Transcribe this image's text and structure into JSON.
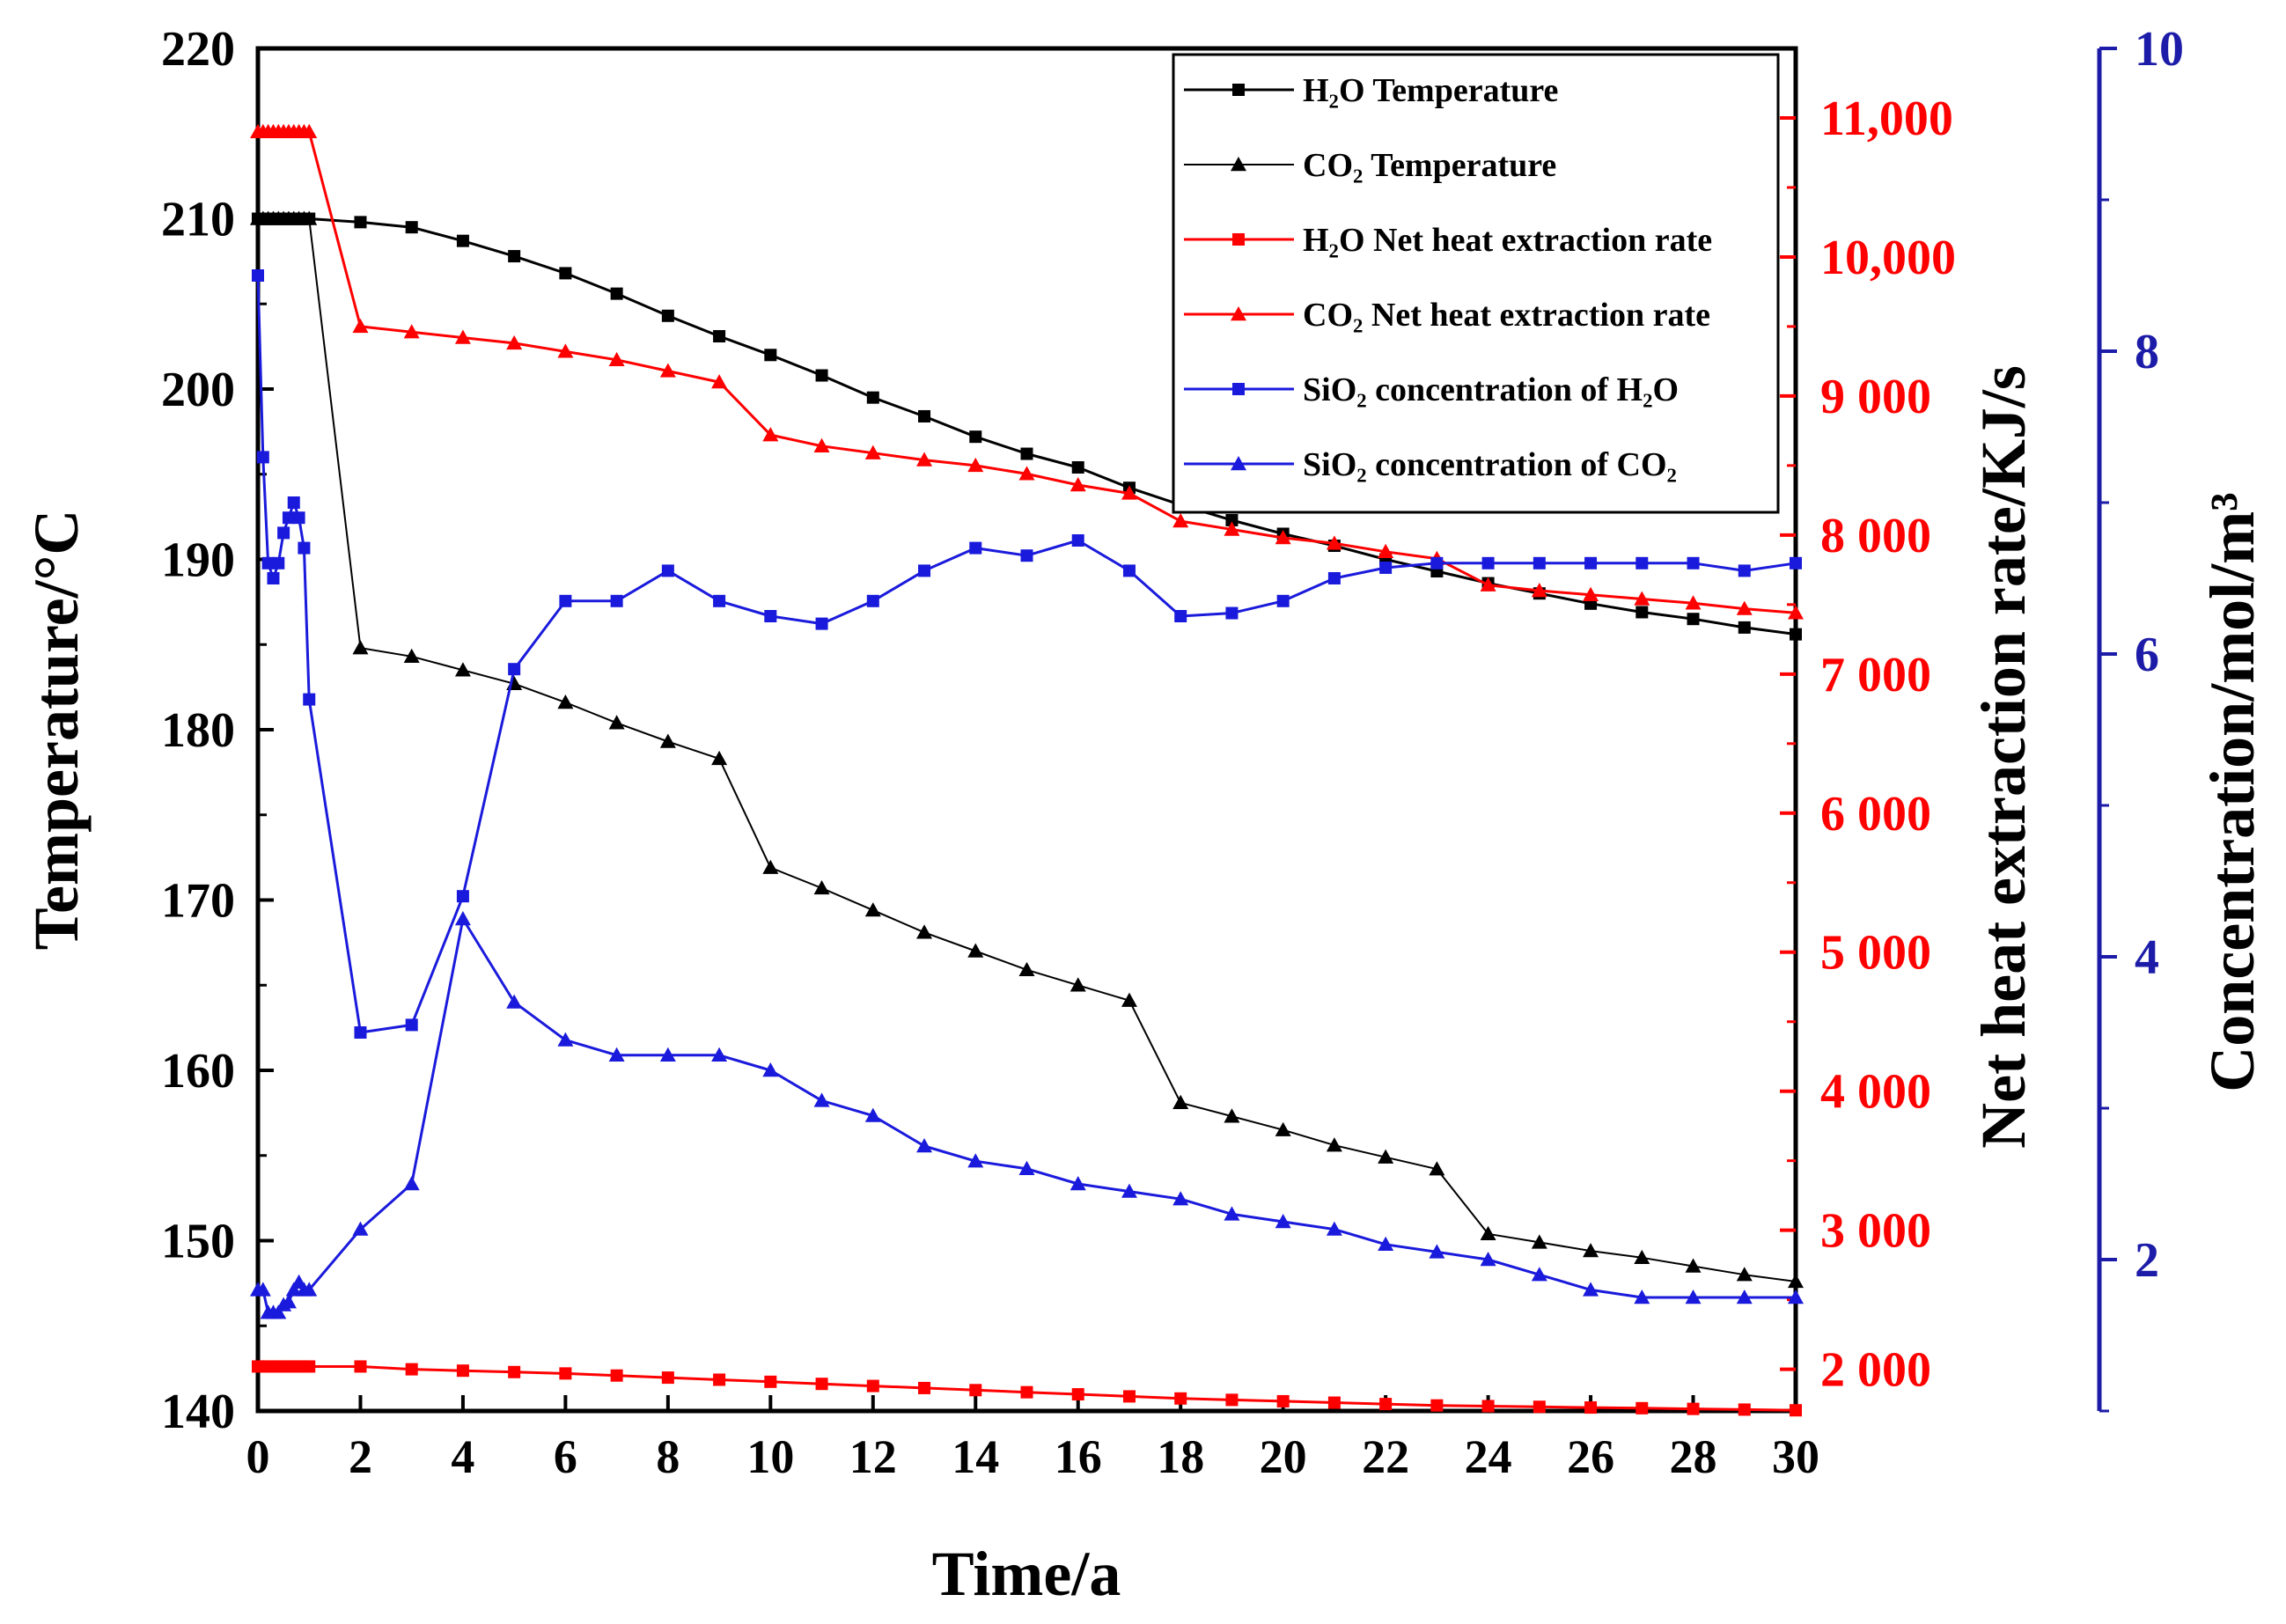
{
  "chart_data": {
    "type": "line",
    "xlabel": "Time/a",
    "ylabel_left": "Temperature/°C",
    "ylabel_right1": "Net heat extraction rate/KJ/s",
    "ylabel_right2": "Concentration/mol/m³",
    "xlim": [
      0,
      30
    ],
    "ylim_left": [
      140,
      220
    ],
    "ylim_right1": [
      1700,
      11500
    ],
    "ylim_right2": [
      1,
      10
    ],
    "x_ticks": [
      "0",
      "2",
      "4",
      "6",
      "8",
      "10",
      "12",
      "14",
      "16",
      "18",
      "20",
      "22",
      "24",
      "26",
      "28",
      "30"
    ],
    "left_ticks": [
      "140",
      "150",
      "160",
      "170",
      "180",
      "190",
      "200",
      "210",
      "220"
    ],
    "right1_ticks": [
      "2 000",
      "3 000",
      "4 000",
      "5 000",
      "6 000",
      "7 000",
      "8 000",
      "9 000",
      "10,000",
      "11,000"
    ],
    "right2_ticks": [
      "2",
      "4",
      "6",
      "8",
      "10"
    ],
    "colors": {
      "black": "#000000",
      "red": "#ff0000",
      "blue": "#1a1adc",
      "axis_blue": "#1c1ca8"
    },
    "legend": [
      {
        "label": "H₂O Temperature",
        "color": "#000000",
        "marker": "square",
        "line_width": 3
      },
      {
        "label": "CO₂ Temperature",
        "color": "#000000",
        "marker": "triangle",
        "line_width": 2
      },
      {
        "label": "H₂O Net heat extraction rate",
        "color": "#ff0000",
        "marker": "square",
        "line_width": 3
      },
      {
        "label": "CO₂ Net heat extraction rate",
        "color": "#ff0000",
        "marker": "triangle",
        "line_width": 3
      },
      {
        "label": "SiO₂ concentration of H₂O",
        "color": "#1a1adc",
        "marker": "square",
        "line_width": 3
      },
      {
        "label": "SiO₂ concentration of CO₂",
        "color": "#1a1adc",
        "marker": "triangle",
        "line_width": 3
      }
    ],
    "series": [
      {
        "name": "H₂O Temperature",
        "axis": "left",
        "color": "#000000",
        "marker": "square",
        "line_width": 3,
        "x": [
          0,
          0.1,
          0.2,
          0.3,
          0.4,
          0.5,
          0.6,
          0.7,
          0.8,
          0.9,
          1,
          2,
          3,
          4,
          5,
          6,
          7,
          8,
          9,
          10,
          11,
          12,
          13,
          14,
          15,
          16,
          17,
          18,
          19,
          20,
          21,
          22,
          23,
          24,
          25,
          26,
          27,
          28,
          29,
          30
        ],
        "y": [
          210,
          210,
          210,
          210,
          210,
          210,
          210,
          210,
          210,
          210,
          210,
          209.8,
          209.5,
          208.7,
          207.8,
          206.8,
          205.6,
          204.3,
          203.1,
          202.0,
          200.8,
          199.5,
          198.4,
          197.2,
          196.2,
          195.4,
          194.2,
          193.2,
          192.3,
          191.5,
          190.8,
          190.0,
          189.3,
          188.6,
          188.0,
          187.4,
          186.9,
          186.5,
          186.0,
          185.6
        ]
      },
      {
        "name": "CO₂ Temperature",
        "axis": "left",
        "color": "#000000",
        "marker": "triangle",
        "line_width": 2,
        "x": [
          0,
          0.1,
          0.2,
          0.3,
          0.4,
          0.5,
          0.6,
          0.7,
          0.8,
          0.9,
          1,
          2,
          3,
          4,
          5,
          6,
          7,
          8,
          9,
          10,
          11,
          12,
          13,
          14,
          15,
          16,
          17,
          18,
          19,
          20,
          21,
          22,
          23,
          24,
          25,
          26,
          27,
          28,
          29,
          30
        ],
        "y": [
          210,
          210,
          210,
          210,
          210,
          210,
          210,
          210,
          210,
          210,
          210,
          184.8,
          184.3,
          183.5,
          182.7,
          181.6,
          180.4,
          179.3,
          178.3,
          171.9,
          170.7,
          169.4,
          168.1,
          167.0,
          165.9,
          165.0,
          164.1,
          158.1,
          157.3,
          156.5,
          155.6,
          154.9,
          154.2,
          150.4,
          149.9,
          149.4,
          149.0,
          148.5,
          148.0,
          147.6
        ]
      },
      {
        "name": "H₂O Net heat extraction rate",
        "axis": "right1",
        "color": "#ff0000",
        "marker": "square",
        "line_width": 3,
        "x": [
          0,
          0.1,
          0.2,
          0.3,
          0.4,
          0.5,
          0.6,
          0.7,
          0.8,
          0.9,
          1,
          2,
          3,
          4,
          5,
          6,
          7,
          8,
          9,
          10,
          11,
          12,
          13,
          14,
          15,
          16,
          17,
          18,
          19,
          20,
          21,
          22,
          23,
          24,
          25,
          26,
          27,
          28,
          29,
          30
        ],
        "y": [
          2020,
          2020,
          2020,
          2020,
          2020,
          2020,
          2020,
          2020,
          2020,
          2020,
          2020,
          2020,
          2000,
          1990,
          1980,
          1970,
          1955,
          1940,
          1925,
          1910,
          1895,
          1880,
          1865,
          1850,
          1835,
          1820,
          1805,
          1790,
          1780,
          1770,
          1760,
          1750,
          1740,
          1735,
          1730,
          1725,
          1720,
          1715,
          1710,
          1705
        ]
      },
      {
        "name": "CO₂ Net heat extraction rate",
        "axis": "right1",
        "color": "#ff0000",
        "marker": "triangle",
        "line_width": 3,
        "x": [
          0,
          0.1,
          0.2,
          0.3,
          0.4,
          0.5,
          0.6,
          0.7,
          0.8,
          0.9,
          1,
          2,
          3,
          4,
          5,
          6,
          7,
          8,
          9,
          10,
          11,
          12,
          13,
          14,
          15,
          16,
          17,
          18,
          19,
          20,
          21,
          22,
          23,
          24,
          25,
          26,
          27,
          28,
          29,
          30
        ],
        "y": [
          10900,
          10900,
          10900,
          10900,
          10900,
          10900,
          10900,
          10900,
          10900,
          10900,
          10900,
          9500,
          9460,
          9420,
          9380,
          9320,
          9260,
          9180,
          9100,
          8720,
          8640,
          8590,
          8540,
          8500,
          8440,
          8360,
          8300,
          8100,
          8040,
          7980,
          7940,
          7880,
          7830,
          7640,
          7600,
          7570,
          7540,
          7510,
          7470,
          7440
        ]
      },
      {
        "name": "SiO₂ concentration of H₂O",
        "axis": "right2",
        "color": "#1a1adc",
        "marker": "square",
        "line_width": 3,
        "x": [
          0,
          0.1,
          0.2,
          0.3,
          0.4,
          0.5,
          0.6,
          0.7,
          0.8,
          0.9,
          1,
          2,
          3,
          4,
          5,
          6,
          7,
          8,
          9,
          10,
          11,
          12,
          13,
          14,
          15,
          16,
          17,
          18,
          19,
          20,
          21,
          22,
          23,
          24,
          25,
          26,
          27,
          28,
          29,
          30
        ],
        "y": [
          8.5,
          7.3,
          6.6,
          6.5,
          6.6,
          6.8,
          6.9,
          7.0,
          6.9,
          6.7,
          5.7,
          3.5,
          3.55,
          4.4,
          5.9,
          6.35,
          6.35,
          6.55,
          6.35,
          6.25,
          6.2,
          6.35,
          6.55,
          6.7,
          6.65,
          6.75,
          6.55,
          6.25,
          6.27,
          6.35,
          6.5,
          6.57,
          6.6,
          6.6,
          6.6,
          6.6,
          6.6,
          6.6,
          6.55,
          6.6
        ]
      },
      {
        "name": "SiO₂ concentration of CO₂",
        "axis": "right2",
        "color": "#1a1adc",
        "marker": "triangle",
        "line_width": 3,
        "x": [
          0,
          0.1,
          0.2,
          0.3,
          0.4,
          0.5,
          0.6,
          0.7,
          0.8,
          0.9,
          1,
          2,
          3,
          4,
          5,
          6,
          7,
          8,
          9,
          10,
          11,
          12,
          13,
          14,
          15,
          16,
          17,
          18,
          19,
          20,
          21,
          22,
          23,
          24,
          25,
          26,
          27,
          28,
          29,
          30
        ],
        "y": [
          1.8,
          1.8,
          1.65,
          1.65,
          1.65,
          1.7,
          1.72,
          1.8,
          1.85,
          1.8,
          1.8,
          2.2,
          2.5,
          4.25,
          3.7,
          3.45,
          3.35,
          3.35,
          3.35,
          3.25,
          3.05,
          2.95,
          2.75,
          2.65,
          2.6,
          2.5,
          2.45,
          2.4,
          2.3,
          2.25,
          2.2,
          2.1,
          2.05,
          2.0,
          1.9,
          1.8,
          1.75,
          1.75,
          1.75,
          1.75
        ]
      }
    ]
  }
}
